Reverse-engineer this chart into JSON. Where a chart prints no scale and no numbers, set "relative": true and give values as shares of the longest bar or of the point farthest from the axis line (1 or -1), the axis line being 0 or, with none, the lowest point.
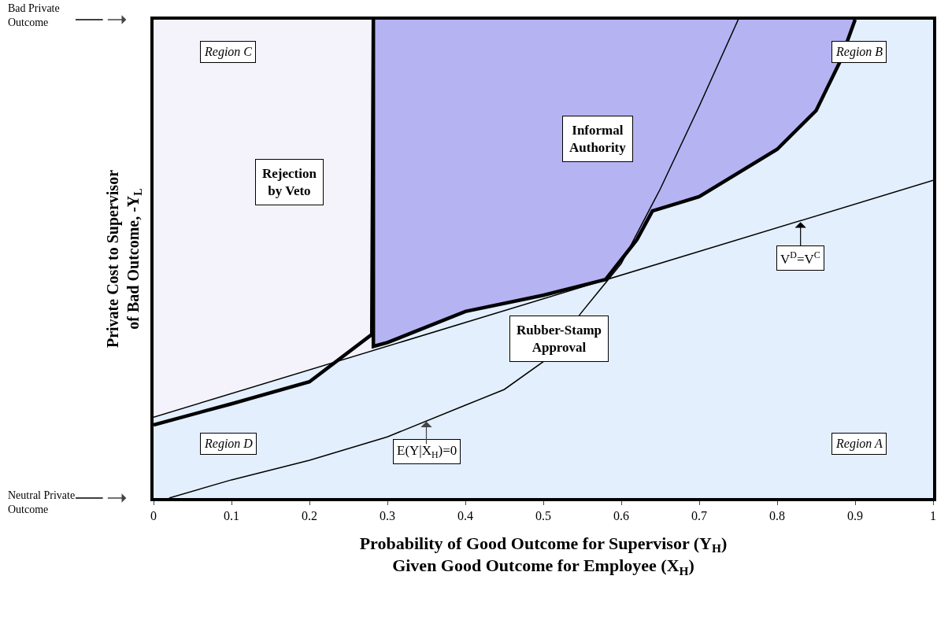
{
  "chart_data": {
    "type": "line",
    "xlabel": "Probability of Good Outcome for Supervisor (Y$_{H}$)\nGiven Good Outcome for Employee (X$_{H}$)",
    "ylabel": "Private Cost to Supervisor\nof Bad Outcome, -Y$_{L}$",
    "xlim": [
      0,
      1
    ],
    "xticks": [
      0,
      0.1,
      0.2,
      0.3,
      0.4,
      0.5,
      0.6,
      0.7,
      0.8,
      0.9,
      1
    ],
    "relative": true,
    "series": [
      {
        "type": "area",
        "color": "#f4f3fc",
        "x": [
          0,
          0.282
        ],
        "values": [
          1,
          1
        ]
      },
      {
        "type": "area",
        "color": "#b5b3f2",
        "x": [
          0.282,
          0.9
        ],
        "values": [
          1,
          1
        ]
      },
      {
        "type": "area",
        "color": "#e3effc",
        "x": [
          0,
          0.1,
          0.2,
          0.282,
          0.282,
          0.3,
          0.4,
          0.5,
          0.58,
          0.62,
          0.64,
          0.7,
          0.8,
          0.85,
          0.88,
          0.9,
          1
        ],
        "values": [
          0.169,
          0.218,
          0.267,
          0.308,
          0.317,
          0.325,
          0.39,
          0.424,
          0.457,
          0.54,
          0.6,
          0.63,
          0.729,
          0.81,
          0.91,
          1,
          1
        ]
      },
      {
        "color": "#000000",
        "x": [
          0,
          1
        ],
        "values": [
          0.169,
          0.664
        ]
      },
      {
        "color": "#000000",
        "x": [
          0.02,
          0.1,
          0.2,
          0.3,
          0.4,
          0.45,
          0.5,
          0.55,
          0.6,
          0.65,
          0.7,
          0.75
        ],
        "values": [
          0,
          0.038,
          0.079,
          0.128,
          0.194,
          0.227,
          0.285,
          0.39,
          0.49,
          0.646,
          0.819,
          1
        ]
      },
      {
        "color": "#000000",
        "x": [
          0,
          0.1,
          0.2,
          0.28,
          0.282,
          0.282,
          0.3,
          0.4,
          0.5,
          0.58,
          0.62,
          0.64,
          0.7,
          0.8,
          0.85,
          0.88,
          0.9
        ],
        "values": [
          0.153,
          0.197,
          0.243,
          0.342,
          1,
          0.317,
          0.325,
          0.39,
          0.424,
          0.457,
          0.54,
          0.6,
          0.63,
          0.729,
          0.81,
          0.91,
          1
        ]
      }
    ],
    "annotations": [
      "Region C",
      "Region B",
      "Region D",
      "Region A",
      "Rejection\nby Veto",
      "Informal\nAuthority",
      "Rubber-Stamp\nApproval",
      {
        "text": "V$^{D}$=V$^{C}$",
        "x": 0.83,
        "y": 0.58
      },
      "E(Y|X$_{H}$)=0",
      "Bad Private\nOutcome",
      "Neutral Private\nOutcome"
    ]
  }
}
